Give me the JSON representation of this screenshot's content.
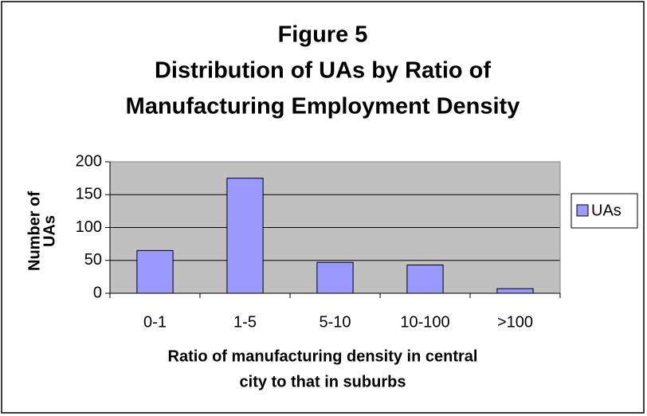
{
  "chart_data": {
    "type": "bar",
    "title": [
      "Figure 5",
      "Distribution of UAs by Ratio of",
      "Manufacturing Employment Density"
    ],
    "x_label": [
      "Ratio of manufacturing density in central",
      "city to that in suburbs"
    ],
    "y_label": [
      "Number of",
      "UAs"
    ],
    "categories": [
      "0-1",
      "1-5",
      "5-10",
      "10-100",
      ">100"
    ],
    "series": [
      {
        "name": "UAs",
        "color": "#9999ff",
        "values": [
          65,
          175,
          47,
          43,
          7
        ]
      }
    ],
    "ylim": [
      0,
      200
    ],
    "yticks": [
      0,
      50,
      100,
      150,
      200
    ],
    "grid": true,
    "legend": "right",
    "plot_background": "#c0c0c0"
  }
}
